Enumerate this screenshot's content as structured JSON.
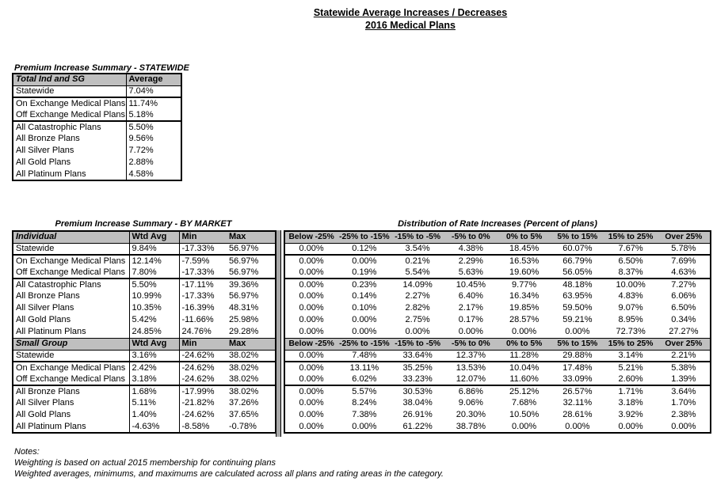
{
  "page_title": {
    "line1": "Statewide Average Increases / Decreases",
    "line2": "2016 Medical Plans"
  },
  "colors": {
    "header_bg": "#bfbfbf",
    "separator_bg": "#a8a8a8"
  },
  "statewide_summary": {
    "title": "Premium Increase Summary - STATEWIDE",
    "header": {
      "label": "Total Ind and SG",
      "value": "Average"
    },
    "rows": [
      {
        "label": "Statewide",
        "value": "7.04%",
        "sep": true
      },
      {
        "label": "On Exchange Medical Plans",
        "value": "11.74%"
      },
      {
        "label": "Off Exchange Medical Plans",
        "value": "5.18%",
        "sep": true
      },
      {
        "label": "All Catastrophic Plans",
        "value": "5.50%"
      },
      {
        "label": "All Bronze Plans",
        "value": "9.56%"
      },
      {
        "label": "All Silver Plans",
        "value": "7.72%"
      },
      {
        "label": "All Gold Plans",
        "value": "2.88%"
      },
      {
        "label": "All Platinum Plans",
        "value": "4.58%"
      }
    ]
  },
  "by_market": {
    "title": "Premium Increase Summary - BY MARKET",
    "sections": [
      {
        "header": {
          "label": "Individual",
          "wtd_avg": "Wtd Avg",
          "min": "Min",
          "max": "Max"
        },
        "rows": [
          {
            "label": "Statewide",
            "wtd_avg": "9.84%",
            "min": "-17.33%",
            "max": "56.97%",
            "sep": true
          },
          {
            "label": "On Exchange Medical Plans",
            "wtd_avg": "12.14%",
            "min": "-7.59%",
            "max": "56.97%"
          },
          {
            "label": "Off Exchange Medical Plans",
            "wtd_avg": "7.80%",
            "min": "-17.33%",
            "max": "56.97%",
            "sep": true
          },
          {
            "label": "All Catastrophic Plans",
            "wtd_avg": "5.50%",
            "min": "-17.11%",
            "max": "39.36%"
          },
          {
            "label": "All Bronze Plans",
            "wtd_avg": "10.99%",
            "min": "-17.33%",
            "max": "56.97%"
          },
          {
            "label": "All Silver Plans",
            "wtd_avg": "10.35%",
            "min": "-16.39%",
            "max": "48.31%"
          },
          {
            "label": "All Gold Plans",
            "wtd_avg": "5.42%",
            "min": "-11.66%",
            "max": "25.98%"
          },
          {
            "label": "All Platinum Plans",
            "wtd_avg": "24.85%",
            "min": "24.76%",
            "max": "29.28%"
          }
        ]
      },
      {
        "header": {
          "label": "Small Group",
          "wtd_avg": "Wtd Avg",
          "min": "Min",
          "max": "Max"
        },
        "rows": [
          {
            "label": "Statewide",
            "wtd_avg": "3.16%",
            "min": "-24.62%",
            "max": "38.02%",
            "sep": true
          },
          {
            "label": "On Exchange Medical Plans",
            "wtd_avg": "2.42%",
            "min": "-24.62%",
            "max": "38.02%"
          },
          {
            "label": "Off Exchange Medical Plans",
            "wtd_avg": "3.18%",
            "min": "-24.62%",
            "max": "38.02%",
            "sep": true
          },
          {
            "label": "All Bronze Plans",
            "wtd_avg": "1.68%",
            "min": "-17.99%",
            "max": "38.02%"
          },
          {
            "label": "All Silver Plans",
            "wtd_avg": "5.11%",
            "min": "-21.82%",
            "max": "37.26%"
          },
          {
            "label": "All Gold Plans",
            "wtd_avg": "1.40%",
            "min": "-24.62%",
            "max": "37.65%"
          },
          {
            "label": "All Platinum Plans",
            "wtd_avg": "-4.63%",
            "min": "-8.58%",
            "max": "-0.78%"
          }
        ]
      }
    ]
  },
  "distribution": {
    "title": "Distribution of Rate Increases (Percent of plans)",
    "columns": [
      "Below -25%",
      "-25% to -15%",
      "-15% to -5%",
      "-5% to 0%",
      "0% to 5%",
      "5% to 15%",
      "15% to 25%",
      "Over 25%"
    ],
    "sections": [
      {
        "rows": [
          [
            "0.00%",
            "0.12%",
            "3.54%",
            "4.38%",
            "18.45%",
            "60.07%",
            "7.67%",
            "5.78%"
          ],
          [
            "0.00%",
            "0.00%",
            "0.21%",
            "2.29%",
            "16.53%",
            "66.79%",
            "6.50%",
            "7.69%"
          ],
          [
            "0.00%",
            "0.19%",
            "5.54%",
            "5.63%",
            "19.60%",
            "56.05%",
            "8.37%",
            "4.63%"
          ],
          [
            "0.00%",
            "0.23%",
            "14.09%",
            "10.45%",
            "9.77%",
            "48.18%",
            "10.00%",
            "7.27%"
          ],
          [
            "0.00%",
            "0.14%",
            "2.27%",
            "6.40%",
            "16.34%",
            "63.95%",
            "4.83%",
            "6.06%"
          ],
          [
            "0.00%",
            "0.10%",
            "2.82%",
            "2.17%",
            "19.85%",
            "59.50%",
            "9.07%",
            "6.50%"
          ],
          [
            "0.00%",
            "0.00%",
            "2.75%",
            "0.17%",
            "28.57%",
            "59.21%",
            "8.95%",
            "0.34%"
          ],
          [
            "0.00%",
            "0.00%",
            "0.00%",
            "0.00%",
            "0.00%",
            "0.00%",
            "72.73%",
            "27.27%"
          ]
        ]
      },
      {
        "rows": [
          [
            "0.00%",
            "7.48%",
            "33.64%",
            "12.37%",
            "11.28%",
            "29.88%",
            "3.14%",
            "2.21%"
          ],
          [
            "0.00%",
            "13.11%",
            "35.25%",
            "13.53%",
            "10.04%",
            "17.48%",
            "5.21%",
            "5.38%"
          ],
          [
            "0.00%",
            "6.02%",
            "33.23%",
            "12.07%",
            "11.60%",
            "33.09%",
            "2.60%",
            "1.39%"
          ],
          [
            "0.00%",
            "5.57%",
            "30.53%",
            "6.86%",
            "25.12%",
            "26.57%",
            "1.71%",
            "3.64%"
          ],
          [
            "0.00%",
            "8.24%",
            "38.04%",
            "9.06%",
            "7.68%",
            "32.11%",
            "3.18%",
            "1.70%"
          ],
          [
            "0.00%",
            "7.38%",
            "26.91%",
            "20.30%",
            "10.50%",
            "28.61%",
            "3.92%",
            "2.38%"
          ],
          [
            "0.00%",
            "0.00%",
            "61.22%",
            "38.78%",
            "0.00%",
            "0.00%",
            "0.00%",
            "0.00%"
          ]
        ]
      }
    ]
  },
  "notes": {
    "title": "Notes:",
    "lines": [
      "Weighting is based on actual 2015 membership for continuing plans",
      "Weighted averages, minimums, and maximums are calculated across all plans and rating areas in the category."
    ]
  }
}
